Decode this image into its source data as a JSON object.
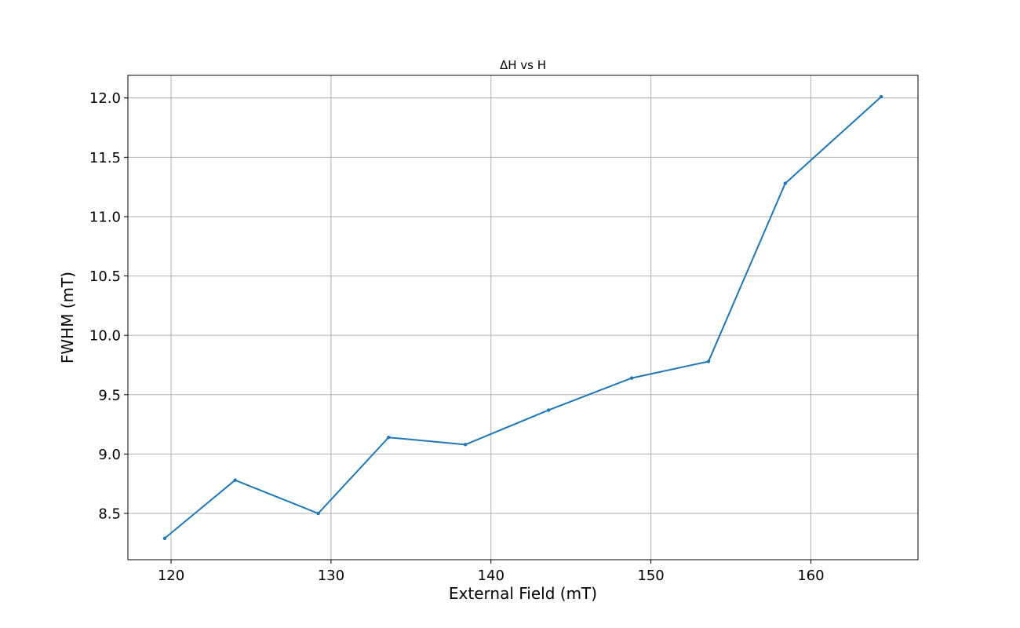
{
  "chart_data": {
    "type": "line",
    "title": "ΔH vs H",
    "xlabel": "External Field (mT)",
    "ylabel": "FWHM (mT)",
    "xlim": [
      117.3,
      166.7
    ],
    "ylim": [
      8.11,
      12.19
    ],
    "xticks": [
      120,
      130,
      140,
      150,
      160
    ],
    "yticks": [
      8.5,
      9.0,
      9.5,
      10.0,
      10.5,
      11.0,
      11.5,
      12.0
    ],
    "xtick_labels": [
      "120",
      "130",
      "140",
      "150",
      "160"
    ],
    "ytick_labels": [
      "8.5",
      "9.0",
      "9.5",
      "10.0",
      "10.5",
      "11.0",
      "11.5",
      "12.0"
    ],
    "grid": true,
    "color": "#1f77b4",
    "series": [
      {
        "x": [
          119.6,
          124.0,
          129.2,
          133.6,
          138.4,
          143.6,
          148.8,
          153.6,
          158.4,
          164.4
        ],
        "y": [
          8.29,
          8.78,
          8.5,
          9.14,
          9.08,
          9.37,
          9.64,
          9.78,
          11.28,
          12.01
        ]
      }
    ]
  }
}
